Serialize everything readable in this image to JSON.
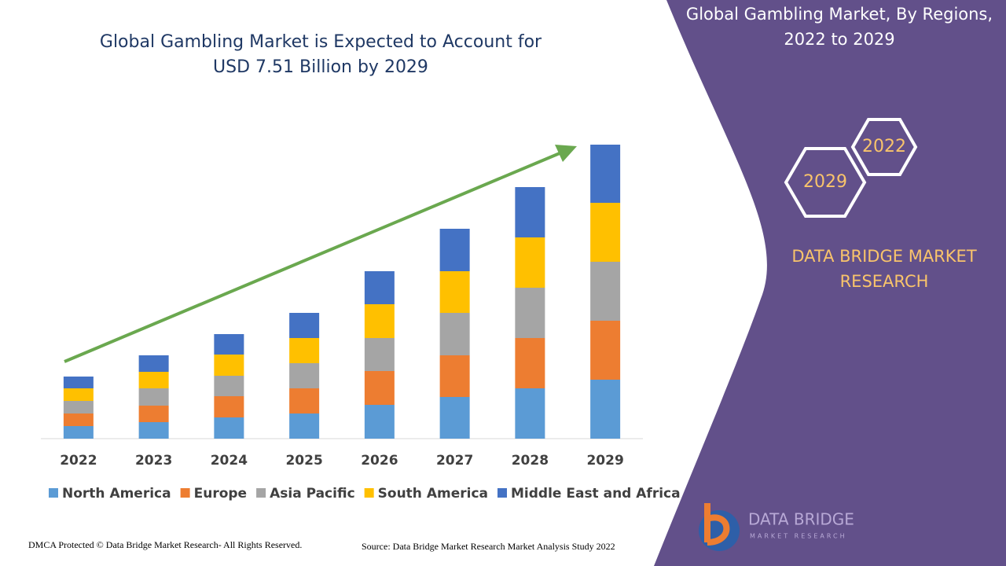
{
  "chart_data": {
    "type": "bar",
    "stacked": true,
    "title": "Global Gambling Market is Expected to Account for USD 7.51 Billion by 2029",
    "categories": [
      "2022",
      "2023",
      "2024",
      "2025",
      "2026",
      "2027",
      "2028",
      "2029"
    ],
    "series": [
      {
        "name": "North America",
        "color": "#5b9bd5",
        "values": [
          16,
          21,
          27,
          32,
          43,
          53,
          64,
          75
        ]
      },
      {
        "name": "Europe",
        "color": "#ed7d31",
        "values": [
          16,
          21,
          27,
          32,
          43,
          53,
          64,
          75
        ]
      },
      {
        "name": "Asia Pacific",
        "color": "#a5a5a5",
        "values": [
          16,
          22,
          26,
          32,
          42,
          54,
          64,
          75
        ]
      },
      {
        "name": "South America",
        "color": "#ffc000",
        "values": [
          16,
          21,
          27,
          32,
          43,
          53,
          64,
          75
        ]
      },
      {
        "name": "Middle East and Africa",
        "color": "#4472c4",
        "values": [
          15,
          21,
          26,
          32,
          42,
          54,
          64,
          74
        ]
      }
    ],
    "legend": "bottom",
    "trend_arrow_color": "#6aa84f"
  },
  "side_panel": {
    "title": "Global Gambling Market, By Regions, 2022 to 2029",
    "hex_start": "2022",
    "hex_end": "2029",
    "brand": "DATA BRIDGE MARKET RESEARCH"
  },
  "logo": {
    "name": "DATA BRIDGE",
    "tagline": "MARKET RESEARCH"
  },
  "footer": {
    "left": "DMCA Protected © Data Bridge Market Research- All Rights Reserved.",
    "right": "Source: Data Bridge Market Research Market Analysis Study 2022"
  }
}
